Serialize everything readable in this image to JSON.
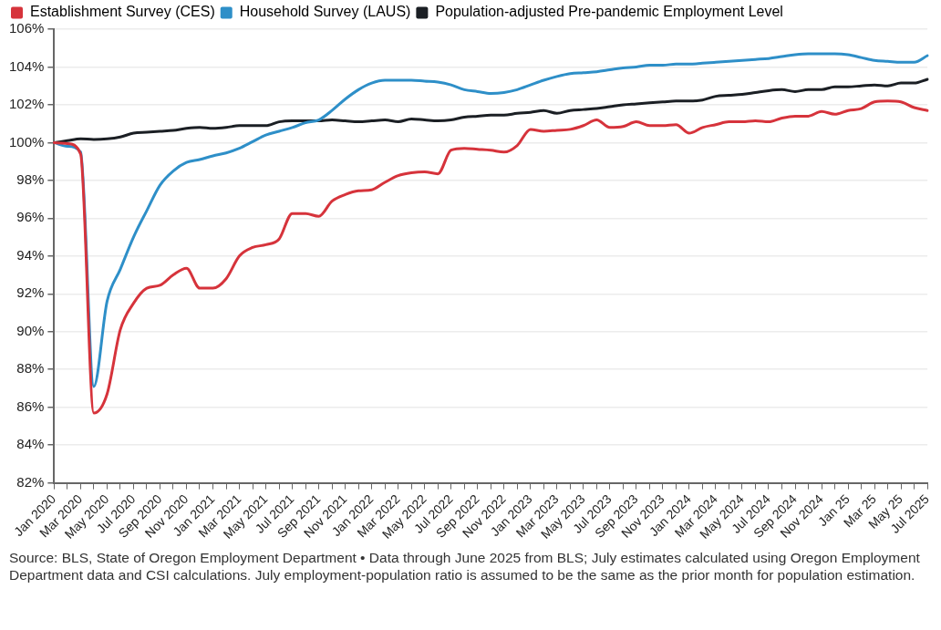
{
  "chart_data": {
    "type": "line",
    "categories": [
      "Jan 2020",
      null,
      "Mar 2020",
      null,
      "May 2020",
      null,
      "Jul 2020",
      null,
      "Sep 2020",
      null,
      "Nov 2020",
      null,
      "Jan 2021",
      null,
      "Mar 2021",
      null,
      "May 2021",
      null,
      "Jul 2021",
      null,
      "Sep 2021",
      null,
      "Nov 2021",
      null,
      "Jan 2022",
      null,
      "Mar 2022",
      null,
      "May 2022",
      null,
      "Jul 2022",
      null,
      "Sep 2022",
      null,
      "Nov 2022",
      null,
      "Jan 2023",
      null,
      "Mar 2023",
      null,
      "May 2023",
      null,
      "Jul 2023",
      null,
      "Sep 2023",
      null,
      "Nov 2023",
      null,
      "Jan 2024",
      null,
      "Mar 2024",
      null,
      "May 2024",
      null,
      "Jul 2024",
      null,
      "Sep 2024",
      null,
      "Nov 2024",
      null,
      "Jan 25",
      null,
      "Mar 25",
      null,
      "May 25",
      null,
      "Jul 2025"
    ],
    "series": [
      {
        "name": "Establishment Survey (CES)",
        "color": "#d6333b",
        "values": [
          100,
          99.95,
          99.4,
          85.7,
          86.7,
          90.1,
          91.5,
          92.3,
          92.45,
          93.0,
          93.35,
          92.3,
          92.3,
          92.8,
          94.0,
          94.45,
          94.6,
          94.9,
          96.25,
          96.25,
          96.1,
          96.9,
          97.25,
          97.45,
          97.5,
          97.9,
          98.25,
          98.4,
          98.45,
          98.35,
          99.6,
          99.7,
          99.65,
          99.6,
          99.5,
          99.85,
          100.7,
          100.6,
          100.65,
          100.7,
          100.9,
          101.2,
          100.8,
          100.85,
          101.1,
          100.9,
          100.9,
          100.95,
          100.5,
          100.8,
          100.95,
          101.1,
          101.1,
          101.15,
          101.1,
          101.3,
          101.4,
          101.4,
          101.65,
          101.5,
          101.7,
          101.8,
          102.15,
          102.2,
          102.15,
          101.85,
          101.7
        ]
      },
      {
        "name": "Household Survey (LAUS)",
        "color": "#2e8fc8",
        "values": [
          100,
          99.8,
          99.5,
          87.1,
          91.6,
          93.3,
          95.0,
          96.4,
          97.75,
          98.5,
          98.95,
          99.1,
          99.3,
          99.45,
          99.7,
          100.05,
          100.4,
          100.6,
          100.8,
          101.05,
          101.2,
          101.7,
          102.3,
          102.8,
          103.15,
          103.3,
          103.3,
          103.3,
          103.25,
          103.2,
          103.05,
          102.8,
          102.7,
          102.6,
          102.65,
          102.8,
          103.05,
          103.3,
          103.5,
          103.65,
          103.7,
          103.75,
          103.85,
          103.95,
          104.0,
          104.1,
          104.1,
          104.15,
          104.15,
          104.2,
          104.25,
          104.3,
          104.35,
          104.4,
          104.45,
          104.55,
          104.65,
          104.7,
          104.7,
          104.7,
          104.65,
          104.5,
          104.35,
          104.3,
          104.25,
          104.25,
          104.6
        ]
      },
      {
        "name": "Population-adjusted Pre-pandemic Employment Level",
        "color": "#1b1f24",
        "values": [
          100,
          100.1,
          100.2,
          100.17,
          100.2,
          100.3,
          100.5,
          100.55,
          100.6,
          100.65,
          100.75,
          100.8,
          100.75,
          100.8,
          100.9,
          100.9,
          100.9,
          101.1,
          101.15,
          101.15,
          101.15,
          101.2,
          101.15,
          101.1,
          101.15,
          101.2,
          101.1,
          101.25,
          101.2,
          101.15,
          101.2,
          101.35,
          101.4,
          101.45,
          101.45,
          101.55,
          101.6,
          101.7,
          101.55,
          101.7,
          101.75,
          101.8,
          101.9,
          102.0,
          102.05,
          102.1,
          102.15,
          102.2,
          102.2,
          102.25,
          102.45,
          102.5,
          102.55,
          102.65,
          102.75,
          102.8,
          102.7,
          102.8,
          102.8,
          102.95,
          102.95,
          103.0,
          103.05,
          103.0,
          103.15,
          103.15,
          103.35
        ]
      }
    ],
    "ylim": [
      82,
      106
    ],
    "yticks": [
      {
        "value": 82,
        "label": "82%"
      },
      {
        "value": 84,
        "label": "84%"
      },
      {
        "value": 86,
        "label": "86%"
      },
      {
        "value": 88,
        "label": "88%"
      },
      {
        "value": 90,
        "label": "90%"
      },
      {
        "value": 92,
        "label": "92%"
      },
      {
        "value": 94,
        "label": "94%"
      },
      {
        "value": 96,
        "label": "96%"
      },
      {
        "value": 98,
        "label": "98%"
      },
      {
        "value": 100,
        "label": "100%"
      },
      {
        "value": 102,
        "label": "102%"
      },
      {
        "value": 104,
        "label": "104%"
      },
      {
        "value": 106,
        "label": "106%"
      }
    ],
    "grid": "y",
    "legend": "top left",
    "marker": "none",
    "line_style": "solid",
    "annotations": [
      "Source: BLS, State of Oregon Employment Department • Data through June 2025 from BLS; July estimates calculated using Oregon Employment Department data and CSI calculations. July employment-population ratio is assumed to be the same as the prior month for population estimation."
    ]
  }
}
